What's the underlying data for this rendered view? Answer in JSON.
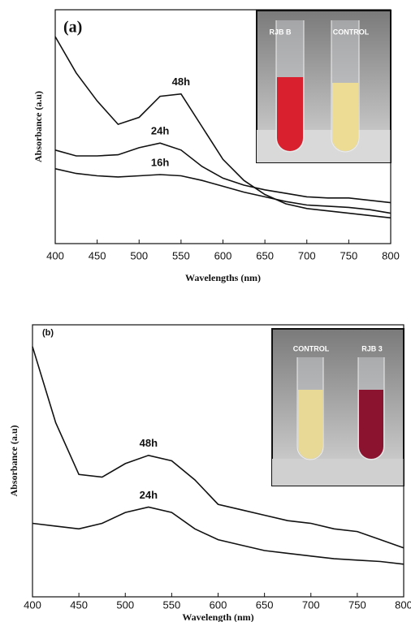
{
  "chart_data": [
    {
      "type": "line",
      "panel_label": "(a)",
      "x_label": "Wavelengths (nm)",
      "y_label": "Absorbance (a.u)",
      "inset_labels": [
        "RJB B",
        "CONTROL"
      ],
      "x": [
        400,
        425,
        450,
        475,
        500,
        525,
        550,
        575,
        600,
        625,
        650,
        675,
        700,
        725,
        750,
        775,
        800
      ],
      "series": [
        {
          "name": "48h",
          "color": "#111111",
          "values": [
            0.885,
            0.73,
            0.61,
            0.51,
            0.54,
            0.63,
            0.64,
            0.5,
            0.36,
            0.27,
            0.21,
            0.17,
            0.15,
            0.14,
            0.13,
            0.12,
            0.11
          ]
        },
        {
          "name": "24h",
          "color": "#111111",
          "values": [
            0.4,
            0.375,
            0.375,
            0.38,
            0.41,
            0.43,
            0.4,
            0.33,
            0.28,
            0.25,
            0.23,
            0.215,
            0.2,
            0.195,
            0.195,
            0.185,
            0.175
          ]
        },
        {
          "name": "16h",
          "color": "#111111",
          "values": [
            0.32,
            0.3,
            0.29,
            0.285,
            0.29,
            0.295,
            0.29,
            0.27,
            0.245,
            0.22,
            0.2,
            0.18,
            0.165,
            0.16,
            0.155,
            0.145,
            0.13
          ]
        }
      ],
      "xlim": [
        400,
        800
      ],
      "ylim": [
        0,
        1
      ],
      "xticks": [
        400,
        450,
        500,
        550,
        600,
        650,
        700,
        750,
        800
      ]
    },
    {
      "type": "line",
      "panel_label": "(b)",
      "x_label": "Wavelength (nm)",
      "y_label": "Absorbance (a.u)",
      "inset_labels": [
        "CONTROL",
        "RJB 3"
      ],
      "x": [
        400,
        425,
        450,
        475,
        500,
        525,
        550,
        575,
        600,
        625,
        650,
        675,
        700,
        725,
        750,
        775,
        800
      ],
      "series": [
        {
          "name": "48h",
          "color": "#111111",
          "values": [
            0.92,
            0.64,
            0.45,
            0.44,
            0.49,
            0.52,
            0.5,
            0.43,
            0.34,
            0.32,
            0.3,
            0.28,
            0.27,
            0.25,
            0.24,
            0.21,
            0.18
          ]
        },
        {
          "name": "24h",
          "color": "#111111",
          "values": [
            0.27,
            0.26,
            0.25,
            0.27,
            0.31,
            0.33,
            0.31,
            0.25,
            0.21,
            0.19,
            0.17,
            0.16,
            0.15,
            0.14,
            0.135,
            0.13,
            0.12
          ]
        }
      ],
      "xlim": [
        400,
        800
      ],
      "ylim": [
        0,
        1
      ],
      "xticks": [
        400,
        450,
        500,
        550,
        600,
        650,
        700,
        750,
        800
      ]
    }
  ]
}
